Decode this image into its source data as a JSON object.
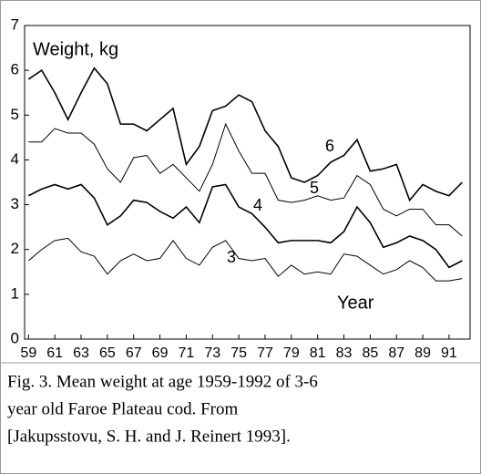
{
  "chart_data": {
    "type": "line",
    "y_label": "Weight, kg",
    "x_label": "Year",
    "x": [
      59,
      60,
      61,
      62,
      63,
      64,
      65,
      66,
      67,
      68,
      69,
      70,
      71,
      72,
      73,
      74,
      75,
      76,
      77,
      78,
      79,
      80,
      81,
      82,
      83,
      84,
      85,
      86,
      87,
      88,
      89,
      90,
      91,
      92
    ],
    "series": [
      {
        "name": "3",
        "color": "#000000",
        "values": [
          1.75,
          2.0,
          2.2,
          2.25,
          1.95,
          1.85,
          1.45,
          1.75,
          1.9,
          1.75,
          1.8,
          2.2,
          1.8,
          1.65,
          2.05,
          2.2,
          1.8,
          1.75,
          1.8,
          1.4,
          1.65,
          1.45,
          1.5,
          1.45,
          1.9,
          1.85,
          1.65,
          1.45,
          1.55,
          1.75,
          1.6,
          1.3,
          1.3,
          1.35
        ]
      },
      {
        "name": "4",
        "color": "#000000",
        "values": [
          3.2,
          3.35,
          3.45,
          3.35,
          3.45,
          3.15,
          2.55,
          2.75,
          3.1,
          3.05,
          2.85,
          2.7,
          2.95,
          2.6,
          3.4,
          3.45,
          2.95,
          2.8,
          2.5,
          2.15,
          2.2,
          2.2,
          2.2,
          2.15,
          2.4,
          2.95,
          2.6,
          2.05,
          2.15,
          2.3,
          2.2,
          2.0,
          1.6,
          1.75
        ]
      },
      {
        "name": "5",
        "color": "#000000",
        "values": [
          4.4,
          4.4,
          4.7,
          4.6,
          4.6,
          4.35,
          3.8,
          3.5,
          4.05,
          4.1,
          3.7,
          3.9,
          3.6,
          3.3,
          3.9,
          4.8,
          4.2,
          3.7,
          3.7,
          3.1,
          3.05,
          3.1,
          3.2,
          3.1,
          3.15,
          3.65,
          3.45,
          2.9,
          2.75,
          2.9,
          2.9,
          2.55,
          2.55,
          2.3
        ]
      },
      {
        "name": "6",
        "color": "#000000",
        "values": [
          5.8,
          6.0,
          5.5,
          4.9,
          5.5,
          6.05,
          5.7,
          4.8,
          4.8,
          4.65,
          4.9,
          5.15,
          3.9,
          4.3,
          5.1,
          5.2,
          5.45,
          5.3,
          4.65,
          4.3,
          3.6,
          3.5,
          3.65,
          3.95,
          4.1,
          4.45,
          3.75,
          3.8,
          3.9,
          3.1,
          3.45,
          3.3,
          3.2,
          3.5
        ]
      }
    ],
    "xlim": [
      58.7,
      92.6
    ],
    "xticks": [
      59,
      61,
      63,
      65,
      67,
      69,
      71,
      73,
      75,
      77,
      79,
      81,
      83,
      85,
      87,
      89,
      91
    ],
    "ylim": [
      0,
      7
    ],
    "yticks": [
      0,
      1,
      2,
      3,
      4,
      5,
      6,
      7
    ],
    "caption_lines": [
      "Fig. 3. Mean weight at age 1959-1992 of 3-6",
      "year old Faroe Plateau cod. From",
      "[Jakupsstovu, S. H. and J. Reinert 1993]."
    ]
  }
}
